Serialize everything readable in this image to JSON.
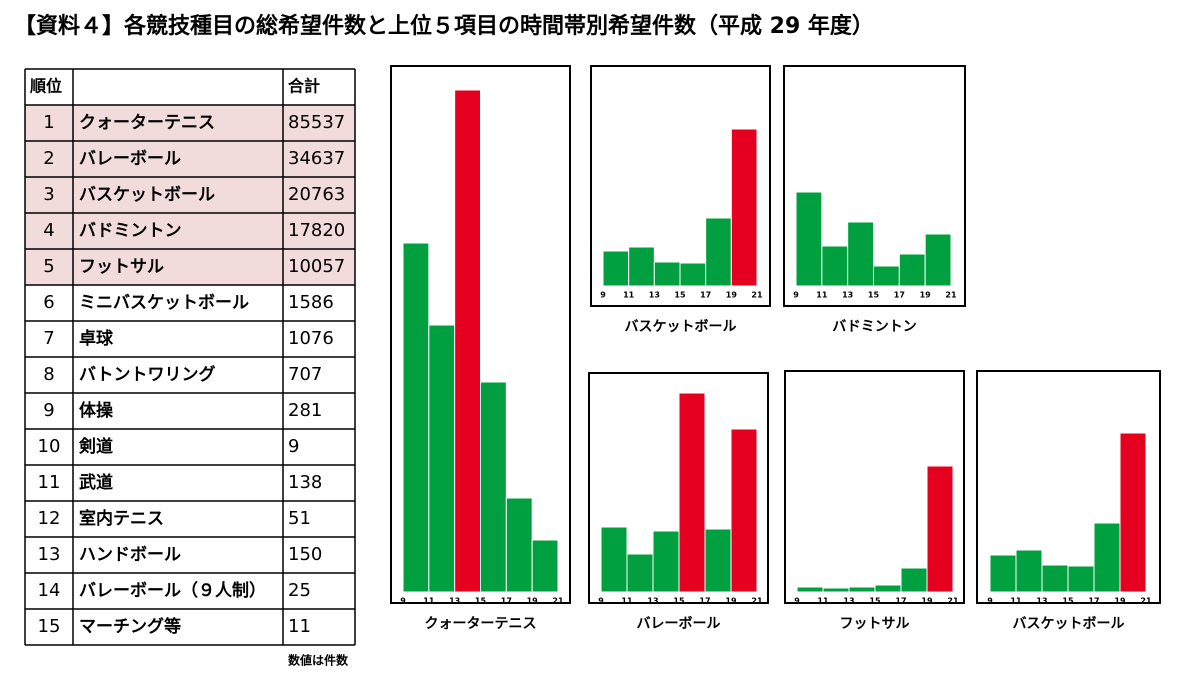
{
  "title": "【資料４】各競技種目の総希望件数と上位５項目の時間帯別希望件数（平成 29 年度）",
  "table": {
    "header": [
      "順位",
      "合計"
    ],
    "rows": [
      [
        1,
        "クォーターテニス",
        85537
      ],
      [
        2,
        "バレーボール",
        34637
      ],
      [
        3,
        "バスケットボール",
        20763
      ],
      [
        4,
        "バドミントン",
        17820
      ],
      [
        5,
        "フットサル",
        10057
      ],
      [
        6,
        "ミニバスケットボール",
        1586
      ],
      [
        7,
        "卓球",
        1076
      ],
      [
        8,
        "バトントワリング",
        707
      ],
      [
        9,
        "体操",
        281
      ],
      [
        10,
        "剣道",
        9
      ],
      [
        11,
        "武道",
        138
      ],
      [
        12,
        "室内テニス",
        51
      ],
      [
        13,
        "ハンドボール",
        150
      ],
      [
        14,
        "バレーボール（９人制）",
        25
      ],
      [
        15,
        "マーチング等",
        11
      ]
    ],
    "highlight_color": "#f2dcdb",
    "note": "数値は件数"
  },
  "chart_data": [
    {
      "type": "histogram",
      "title": "クォーターテニス",
      "bins": [
        9,
        11,
        13,
        15,
        17,
        19,
        21
      ],
      "values": [
        349,
        267,
        502,
        210,
        94,
        52
      ],
      "colors": [
        "#00a040",
        "#00a040",
        "#e60020",
        "#00a040",
        "#00a040",
        "#00a040"
      ],
      "ylim": [
        0,
        526
      ]
    },
    {
      "type": "histogram",
      "title": "バスケットボール",
      "bins": [
        9,
        11,
        13,
        15,
        17,
        19,
        21
      ],
      "values": [
        35,
        39,
        24,
        23,
        68,
        157
      ],
      "colors": [
        "#00a040",
        "#00a040",
        "#00a040",
        "#00a040",
        "#00a040",
        "#e60020"
      ],
      "ylim": [
        0,
        220
      ]
    },
    {
      "type": "histogram",
      "title": "バドミントン",
      "bins": [
        9,
        11,
        13,
        15,
        17,
        19,
        21
      ],
      "values": [
        94,
        40,
        64,
        20,
        32,
        52
      ],
      "colors": [
        "#00a040",
        "#00a040",
        "#00a040",
        "#00a040",
        "#00a040",
        "#00a040"
      ],
      "ylim": [
        0,
        220
      ]
    },
    {
      "type": "histogram",
      "title": "バレーボール",
      "bins": [
        9,
        11,
        13,
        15,
        17,
        19,
        21
      ],
      "values": [
        65,
        38,
        61,
        199,
        63,
        163
      ],
      "colors": [
        "#00a040",
        "#00a040",
        "#00a040",
        "#e60020",
        "#00a040",
        "#e60020"
      ],
      "ylim": [
        0,
        219
      ]
    },
    {
      "type": "histogram",
      "title": "フットサル",
      "bins": [
        9,
        11,
        13,
        15,
        17,
        19,
        21
      ],
      "values": [
        5,
        4,
        5,
        7,
        24,
        126
      ],
      "colors": [
        "#00a040",
        "#00a040",
        "#00a040",
        "#00a040",
        "#00a040",
        "#e60020"
      ],
      "ylim": [
        0,
        221
      ]
    },
    {
      "type": "histogram",
      "title": "バスケットボール",
      "bins": [
        9,
        11,
        13,
        15,
        17,
        19,
        21
      ],
      "values": [
        37,
        42,
        27,
        26,
        69,
        159
      ],
      "colors": [
        "#00a040",
        "#00a040",
        "#00a040",
        "#00a040",
        "#00a040",
        "#e60020"
      ],
      "ylim": [
        0,
        221
      ]
    }
  ]
}
